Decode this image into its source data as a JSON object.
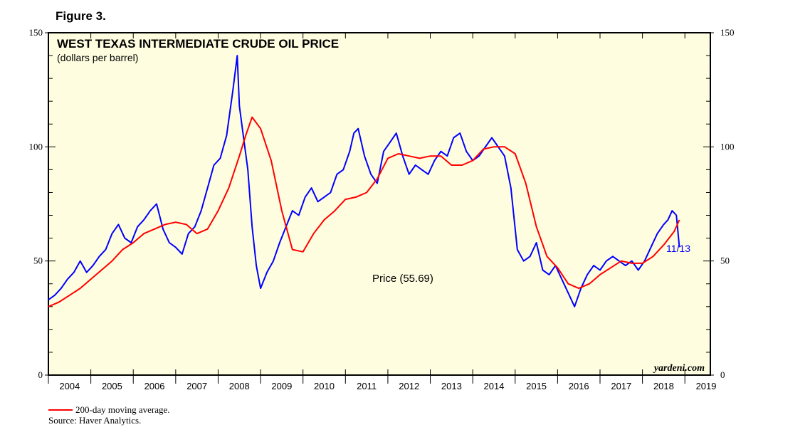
{
  "figure_label": "Figure 3.",
  "chart_data": {
    "type": "line",
    "title": "WEST TEXAS INTERMEDIATE CRUDE OIL PRICE",
    "subtitle": "(dollars per barrel)",
    "ylim": [
      0,
      150
    ],
    "xlim": [
      2004.0,
      2019.6
    ],
    "y_ticks": [
      0,
      50,
      100,
      150
    ],
    "x_labels": [
      "2004",
      "2005",
      "2006",
      "2007",
      "2008",
      "2009",
      "2010",
      "2011",
      "2012",
      "2013",
      "2014",
      "2015",
      "2016",
      "2017",
      "2018",
      "2019"
    ],
    "annotations": {
      "price_label": "Price (55.69)",
      "end_date_label": "11/13",
      "watermark": "yardeni.com"
    },
    "series": [
      {
        "name": "Price",
        "color": "#0000ff",
        "x": [
          2004.0,
          2004.15,
          2004.3,
          2004.45,
          2004.6,
          2004.75,
          2004.9,
          2005.05,
          2005.2,
          2005.35,
          2005.5,
          2005.65,
          2005.8,
          2005.95,
          2006.1,
          2006.25,
          2006.4,
          2006.55,
          2006.7,
          2006.85,
          2007.0,
          2007.15,
          2007.3,
          2007.45,
          2007.6,
          2007.75,
          2007.9,
          2008.05,
          2008.2,
          2008.35,
          2008.45,
          2008.5,
          2008.6,
          2008.7,
          2008.8,
          2008.9,
          2009.0,
          2009.15,
          2009.3,
          2009.45,
          2009.6,
          2009.75,
          2009.9,
          2010.05,
          2010.2,
          2010.35,
          2010.5,
          2010.65,
          2010.8,
          2010.95,
          2011.1,
          2011.2,
          2011.3,
          2011.45,
          2011.6,
          2011.75,
          2011.9,
          2012.05,
          2012.2,
          2012.35,
          2012.5,
          2012.65,
          2012.8,
          2012.95,
          2013.1,
          2013.25,
          2013.4,
          2013.55,
          2013.7,
          2013.85,
          2014.0,
          2014.15,
          2014.3,
          2014.45,
          2014.6,
          2014.75,
          2014.9,
          2015.05,
          2015.2,
          2015.35,
          2015.5,
          2015.65,
          2015.8,
          2015.95,
          2016.1,
          2016.25,
          2016.4,
          2016.55,
          2016.7,
          2016.85,
          2017.0,
          2017.15,
          2017.3,
          2017.45,
          2017.6,
          2017.75,
          2017.9,
          2018.05,
          2018.2,
          2018.35,
          2018.5,
          2018.6,
          2018.7,
          2018.8,
          2018.87
        ],
        "y": [
          33,
          35,
          38,
          42,
          45,
          50,
          45,
          48,
          52,
          55,
          62,
          66,
          60,
          58,
          65,
          68,
          72,
          75,
          64,
          58,
          56,
          53,
          62,
          65,
          72,
          82,
          92,
          95,
          105,
          125,
          140,
          118,
          104,
          90,
          65,
          48,
          38,
          45,
          50,
          58,
          65,
          72,
          70,
          78,
          82,
          76,
          78,
          80,
          88,
          90,
          98,
          106,
          108,
          96,
          88,
          84,
          98,
          102,
          106,
          96,
          88,
          92,
          90,
          88,
          94,
          98,
          96,
          104,
          106,
          98,
          94,
          96,
          100,
          104,
          100,
          96,
          82,
          55,
          50,
          52,
          58,
          46,
          44,
          48,
          42,
          36,
          30,
          38,
          44,
          48,
          46,
          50,
          52,
          50,
          48,
          50,
          46,
          50,
          56,
          62,
          66,
          68,
          72,
          70,
          56
        ]
      },
      {
        "name": "200-day moving average",
        "color": "#ff0000",
        "x": [
          2004.0,
          2004.25,
          2004.5,
          2004.75,
          2005.0,
          2005.25,
          2005.5,
          2005.75,
          2006.0,
          2006.25,
          2006.5,
          2006.75,
          2007.0,
          2007.25,
          2007.5,
          2007.75,
          2008.0,
          2008.25,
          2008.5,
          2008.65,
          2008.8,
          2009.0,
          2009.25,
          2009.5,
          2009.75,
          2010.0,
          2010.25,
          2010.5,
          2010.75,
          2011.0,
          2011.25,
          2011.5,
          2011.75,
          2012.0,
          2012.25,
          2012.5,
          2012.75,
          2013.0,
          2013.25,
          2013.5,
          2013.75,
          2014.0,
          2014.25,
          2014.5,
          2014.75,
          2015.0,
          2015.25,
          2015.5,
          2015.75,
          2016.0,
          2016.25,
          2016.5,
          2016.75,
          2017.0,
          2017.25,
          2017.5,
          2017.75,
          2018.0,
          2018.25,
          2018.5,
          2018.75,
          2018.87
        ],
        "y": [
          30,
          32,
          35,
          38,
          42,
          46,
          50,
          55,
          58,
          62,
          64,
          66,
          67,
          66,
          62,
          64,
          72,
          82,
          96,
          105,
          113,
          108,
          94,
          72,
          55,
          54,
          62,
          68,
          72,
          77,
          78,
          80,
          86,
          95,
          97,
          96,
          95,
          96,
          96,
          92,
          92,
          94,
          99,
          100,
          100,
          97,
          84,
          65,
          52,
          47,
          40,
          38,
          40,
          44,
          47,
          50,
          49,
          49,
          52,
          57,
          63,
          68
        ]
      }
    ]
  },
  "legend": {
    "moving_average_label": "200-day moving average.",
    "source": "Source: Haver Analytics."
  }
}
